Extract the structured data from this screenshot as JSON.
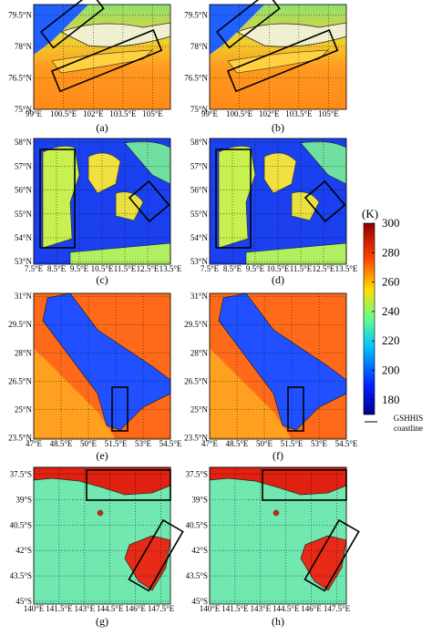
{
  "panels": [
    {
      "label": "(a)",
      "xticks": [
        "99°E",
        "100.5°E",
        "102°E",
        "103.5°E",
        "105°E"
      ],
      "yticks": [
        "79.5°N",
        "78°N",
        "76.5°N",
        "75°N"
      ]
    },
    {
      "label": "(b)",
      "xticks": [
        "99°E",
        "100.5°E",
        "102°E",
        "103.5°E",
        "105°E"
      ],
      "yticks": [
        "79.5°N",
        "78°N",
        "76.5°N",
        "75°N"
      ]
    },
    {
      "label": "(c)",
      "xticks": [
        "7.5°E",
        "8.5°E",
        "9.5°E",
        "10.5°E",
        "11.5°E",
        "12.5°E",
        "13.5°E"
      ],
      "yticks": [
        "58°N",
        "57°N",
        "56°N",
        "55°N",
        "54°N",
        "53°N"
      ]
    },
    {
      "label": "(d)",
      "xticks": [
        "7.5°E",
        "8.5°E",
        "9.5°E",
        "10.5°E",
        "11.5°E",
        "12.5°E",
        "13.5°E"
      ],
      "yticks": [
        "58°N",
        "57°N",
        "56°N",
        "55°N",
        "54°N",
        "53°N"
      ]
    },
    {
      "label": "(e)",
      "xticks": [
        "47°E",
        "48.5°E",
        "50°E",
        "51.5°E",
        "53°E",
        "54.5°E"
      ],
      "yticks": [
        "31°N",
        "29.5°N",
        "28°N",
        "26.5°N",
        "25°N",
        "23.5°N"
      ]
    },
    {
      "label": "(f)",
      "xticks": [
        "47°E",
        "48.5°E",
        "50°E",
        "51.5°E",
        "53°E",
        "54.5°E"
      ],
      "yticks": [
        "31°N",
        "29.5°N",
        "28°N",
        "26.5°N",
        "25°N",
        "23.5°N"
      ]
    },
    {
      "label": "(g)",
      "xticks": [
        "140°E",
        "141.5°E",
        "143°E",
        "144.5°E",
        "146°E",
        "147.5°E"
      ],
      "yticks": [
        "37.5°S",
        "39°S",
        "40.5°S",
        "42°S",
        "43.5°S",
        "45°S"
      ]
    },
    {
      "label": "(h)",
      "xticks": [
        "140°E",
        "141.5°E",
        "143°E",
        "144.5°E",
        "146°E",
        "147.5°E"
      ],
      "yticks": [
        "37.5°S",
        "39°S",
        "40.5°S",
        "42°S",
        "43.5°S",
        "45°S"
      ]
    }
  ],
  "colorbar": {
    "unit": "(K)",
    "range": [
      170,
      300
    ],
    "ticks": [
      180,
      200,
      220,
      240,
      260,
      280,
      300
    ]
  },
  "legend": {
    "lines": [
      "GSHHIS",
      "coastline"
    ]
  }
}
